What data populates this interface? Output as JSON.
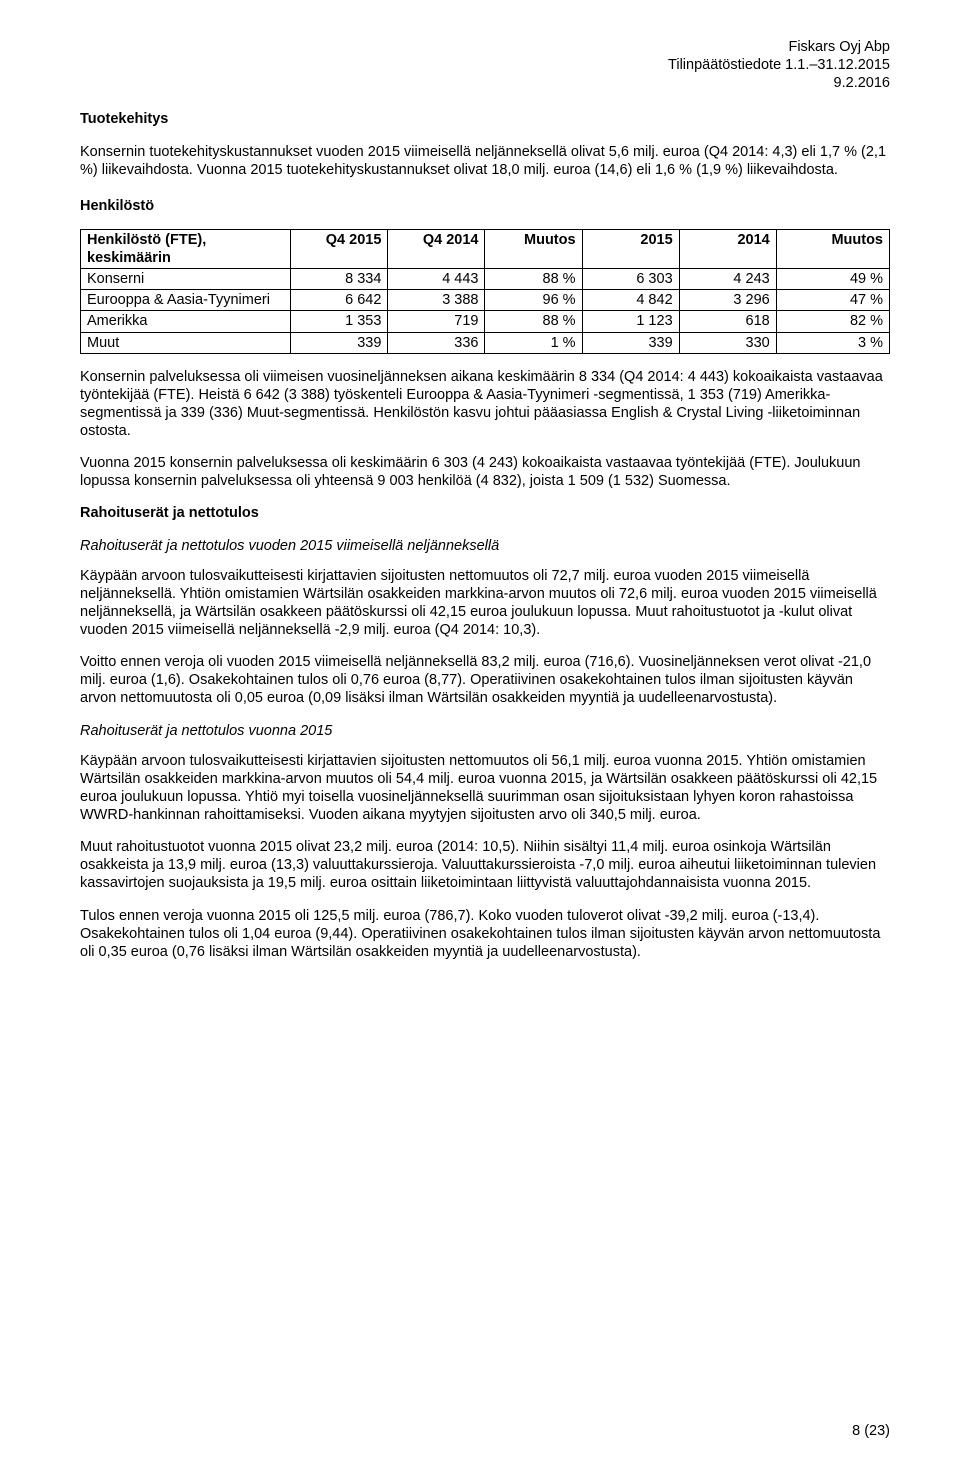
{
  "header": {
    "company": "Fiskars Oyj Abp",
    "report": "Tilinpäätöstiedote 1.1.–31.12.2015",
    "date": "9.2.2016"
  },
  "s1": {
    "title": "Tuotekehitys",
    "p1": "Konsernin tuotekehityskustannukset vuoden 2015 viimeisellä neljänneksellä olivat 5,6 milj. euroa (Q4 2014: 4,3) eli 1,7 % (2,1 %) liikevaihdosta. Vuonna 2015 tuotekehityskustannukset olivat 18,0 milj. euroa (14,6) eli 1,6 % (1,9 %) liikevaihdosta."
  },
  "s2": {
    "title": "Henkilöstö",
    "table": {
      "columns": [
        "Henkilöstö (FTE), keskimäärin",
        "Q4 2015",
        "Q4 2014",
        "Muutos",
        "2015",
        "2014",
        "Muutos"
      ],
      "col_widths": [
        "26%",
        "12%",
        "12%",
        "12%",
        "12%",
        "12%",
        "14%"
      ],
      "rows": [
        [
          "Konserni",
          "8 334",
          "4 443",
          "88 %",
          "6 303",
          "4 243",
          "49 %"
        ],
        [
          "Eurooppa & Aasia-Tyynimeri",
          "6 642",
          "3 388",
          "96 %",
          "4 842",
          "3 296",
          "47 %"
        ],
        [
          "Amerikka",
          "1 353",
          "719",
          "88 %",
          "1 123",
          "618",
          "82 %"
        ],
        [
          "Muut",
          "339",
          "336",
          "1 %",
          "339",
          "330",
          "3 %"
        ]
      ]
    },
    "p1": "Konsernin palveluksessa oli viimeisen vuosineljänneksen aikana keskimäärin 8 334 (Q4 2014: 4 443) kokoaikaista vastaavaa työntekijää (FTE). Heistä 6 642 (3 388) työskenteli Eurooppa & Aasia-Tyynimeri -segmentissä, 1 353 (719) Amerikka-segmentissä ja 339 (336) Muut-segmentissä. Henkilöstön kasvu johtui pääasiassa English & Crystal Living -liiketoiminnan ostosta.",
    "p2": "Vuonna 2015 konsernin palveluksessa oli keskimäärin 6 303 (4 243) kokoaikaista vastaavaa työntekijää (FTE). Joulukuun lopussa konsernin palveluksessa oli yhteensä 9 003 henkilöä (4 832), joista 1 509 (1 532) Suomessa."
  },
  "s3": {
    "title": "Rahoituserät ja nettotulos",
    "sub1": {
      "title": "Rahoituserät ja nettotulos vuoden 2015 viimeisellä neljänneksellä",
      "p1": "Käypään arvoon tulosvaikutteisesti kirjattavien sijoitusten nettomuutos oli 72,7 milj. euroa vuoden 2015 viimeisellä neljänneksellä. Yhtiön omistamien Wärtsilän osakkeiden markkina-arvon muutos oli 72,6 milj. euroa vuoden 2015 viimeisellä neljänneksellä, ja Wärtsilän osakkeen päätöskurssi oli 42,15 euroa joulukuun lopussa. Muut rahoitustuotot ja -kulut olivat vuoden 2015 viimeisellä neljänneksellä -2,9 milj. euroa (Q4 2014: 10,3).",
      "p2": "Voitto ennen veroja oli vuoden 2015 viimeisellä neljänneksellä 83,2 milj. euroa (716,6). Vuosineljänneksen verot olivat -21,0 milj. euroa (1,6). Osakekohtainen tulos oli 0,76 euroa (8,77). Operatiivinen osakekohtainen tulos ilman sijoitusten käyvän arvon nettomuutosta oli 0,05 euroa (0,09 lisäksi ilman Wärtsilän osakkeiden myyntiä ja uudelleenarvostusta)."
    },
    "sub2": {
      "title": "Rahoituserät ja nettotulos vuonna 2015",
      "p1": "Käypään arvoon tulosvaikutteisesti kirjattavien sijoitusten nettomuutos oli 56,1 milj. euroa vuonna 2015. Yhtiön omistamien Wärtsilän osakkeiden markkina-arvon muutos oli 54,4 milj. euroa vuonna 2015, ja Wärtsilän osakkeen päätöskurssi oli 42,15 euroa joulukuun lopussa. Yhtiö myi toisella vuosineljänneksellä suurimman osan sijoituksistaan lyhyen koron rahastoissa WWRD-hankinnan rahoittamiseksi. Vuoden aikana myytyjen sijoitusten arvo oli 340,5 milj. euroa.",
      "p2": "Muut rahoitustuotot vuonna 2015 olivat 23,2 milj. euroa (2014: 10,5). Niihin sisältyi 11,4 milj. euroa osinkoja Wärtsilän osakkeista ja 13,9 milj. euroa (13,3) valuuttakurssieroja. Valuuttakurssieroista -7,0 milj. euroa aiheutui liiketoiminnan tulevien kassavirtojen suojauksista ja 19,5 milj. euroa osittain liiketoimintaan liittyvistä valuuttajohdannaisista vuonna 2015.",
      "p3": "Tulos ennen veroja vuonna 2015 oli 125,5 milj. euroa (786,7). Koko vuoden tuloverot olivat -39,2 milj. euroa (-13,4). Osakekohtainen tulos oli 1,04 euroa (9,44). Operatiivinen osakekohtainen tulos ilman sijoitusten käyvän arvon nettomuutosta oli 0,35 euroa (0,76 lisäksi ilman Wärtsilän osakkeiden myyntiä ja uudelleenarvostusta)."
    }
  },
  "page_number": "8 (23)"
}
